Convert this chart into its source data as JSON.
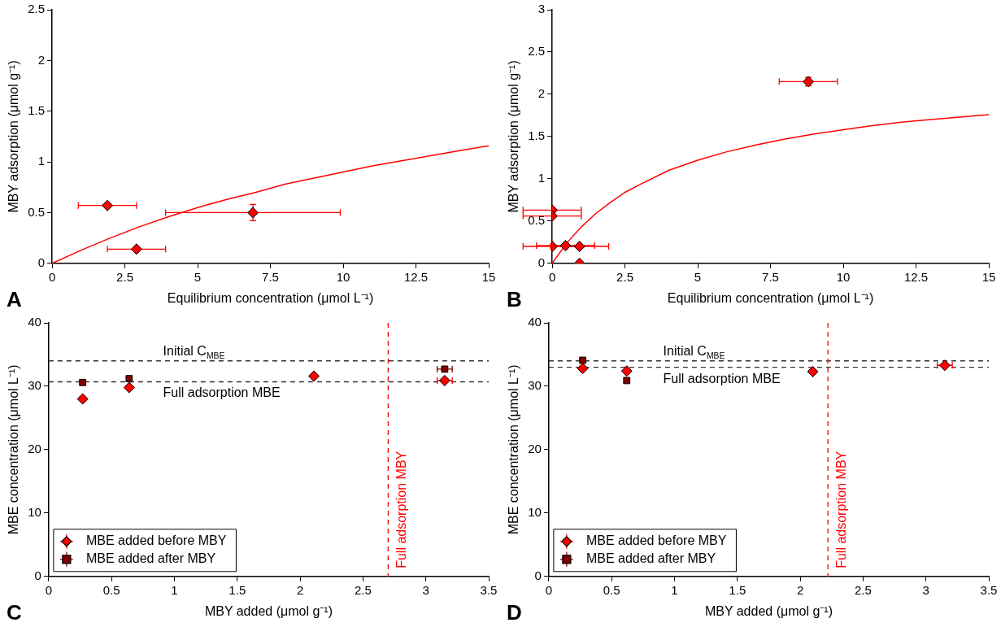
{
  "chart_data": [
    {
      "type": "scatter",
      "xlabel": "Equilibrium concentration (μmol L⁻¹)",
      "ylabel": "MBY adsorption (μmol g⁻¹)",
      "xlim": [
        0,
        15
      ],
      "xticks": [
        0,
        2.5,
        5,
        7.5,
        10,
        12.5,
        15
      ],
      "ylim": [
        0,
        2.5
      ],
      "yticks": [
        0,
        0.5,
        1,
        1.5,
        2,
        2.5
      ],
      "grid": false,
      "annotations": [
        "A"
      ],
      "series": [
        {
          "type": "line",
          "color": "#ff0000",
          "marker": "none",
          "x": [
            0,
            1,
            2,
            3,
            4,
            5,
            6,
            7,
            8,
            9,
            10,
            11,
            12,
            13,
            14,
            15
          ],
          "values": [
            0,
            0.13,
            0.25,
            0.36,
            0.46,
            0.55,
            0.63,
            0.7,
            0.78,
            0.84,
            0.9,
            0.96,
            1.01,
            1.06,
            1.11,
            1.16
          ]
        },
        {
          "color": "#ff0000",
          "marker": "diamond",
          "x": [
            1.9,
            2.9,
            6.9
          ],
          "values": [
            0.57,
            0.14,
            0.5
          ],
          "xerrors": [
            1,
            1,
            3
          ],
          "errors": [
            null,
            null,
            0.08
          ]
        }
      ]
    },
    {
      "type": "scatter",
      "xlabel": "Equilibrium concentration (μmol L⁻¹)",
      "ylabel": "MBY adsorption (μmol g⁻¹)",
      "xlim": [
        0,
        15
      ],
      "xticks": [
        0,
        2.5,
        5,
        7.5,
        10,
        12.5,
        15
      ],
      "ylim": [
        0,
        3
      ],
      "yticks": [
        0,
        0.5,
        1,
        1.5,
        2,
        2.5,
        3
      ],
      "grid": false,
      "annotations": [
        "B"
      ],
      "series": [
        {
          "type": "line",
          "color": "#ff0000",
          "marker": "none",
          "x": [
            0,
            0.5,
            1,
            1.5,
            2,
            2.5,
            3,
            4,
            5,
            6,
            7,
            8,
            9,
            10,
            11,
            12,
            13,
            14,
            15
          ],
          "values": [
            0,
            0.24,
            0.43,
            0.59,
            0.72,
            0.84,
            0.93,
            1.1,
            1.22,
            1.32,
            1.4,
            1.47,
            1.53,
            1.58,
            1.63,
            1.67,
            1.7,
            1.73,
            1.76
          ]
        },
        {
          "color": "#ff0000",
          "marker": "diamond",
          "x": [
            0,
            0,
            0,
            0.46,
            0.94,
            8.8,
            0.94
          ],
          "values": [
            0.63,
            0.56,
            0.2,
            0.21,
            0.2,
            2.15,
            0
          ],
          "xerrors": [
            1,
            1,
            1,
            1,
            1,
            1,
            null
          ],
          "errors": [
            null,
            null,
            null,
            null,
            null,
            0.05,
            null
          ]
        }
      ]
    },
    {
      "type": "scatter",
      "xlabel": "MBY added (μmol g⁻¹)",
      "ylabel": "MBE concentration (μmol L⁻¹)",
      "xlim": [
        0,
        3.5
      ],
      "xticks": [
        0,
        0.5,
        1,
        1.5,
        2,
        2.5,
        3,
        3.5
      ],
      "ylim": [
        0,
        40
      ],
      "yticks": [
        0,
        10,
        20,
        30,
        40
      ],
      "grid": false,
      "legend": "bottom left",
      "annotations": [
        "C"
      ],
      "ref_lines": [
        {
          "axis": "y",
          "value": 34,
          "label": "Initial C$_{MBE}$",
          "color": "#333333",
          "line_style": "dashed"
        },
        {
          "axis": "y",
          "value": 30.7,
          "label": "Full adsorption MBE",
          "color": "#333333",
          "line_style": "dashed"
        },
        {
          "axis": "x",
          "value": 2.7,
          "label": "Full adsorption MBY",
          "color": "#ff0000",
          "line_style": "dashed"
        }
      ],
      "series": [
        {
          "name": "MBE added before MBY",
          "color": "#ff0000",
          "marker": "diamond",
          "x": [
            0.27,
            0.64,
            2.11,
            3.15
          ],
          "values": [
            28,
            29.8,
            31.6,
            30.9
          ],
          "xerrors": [
            null,
            null,
            null,
            0.06
          ]
        },
        {
          "name": "MBE added after MBY",
          "color": "#800000",
          "marker": "square",
          "x": [
            0.27,
            0.64,
            2.11,
            3.15
          ],
          "values": [
            30.6,
            31.2,
            null,
            32.7
          ],
          "xerrors": [
            null,
            null,
            null,
            0.06
          ]
        }
      ]
    },
    {
      "type": "scatter",
      "xlabel": "MBY added (μmol g⁻¹)",
      "ylabel": "MBE concentration (μmol L⁻¹)",
      "xlim": [
        0,
        3.5
      ],
      "xticks": [
        0,
        0.5,
        1,
        1.5,
        2,
        2.5,
        3,
        3.5
      ],
      "ylim": [
        0,
        40
      ],
      "yticks": [
        0,
        10,
        20,
        30,
        40
      ],
      "grid": false,
      "legend": "bottom left",
      "annotations": [
        "D"
      ],
      "ref_lines": [
        {
          "axis": "y",
          "value": 34,
          "label": "Initial C$_{MBE}$",
          "color": "#333333",
          "line_style": "dashed"
        },
        {
          "axis": "y",
          "value": 33,
          "label": "Full adsorption MBE",
          "color": "#333333",
          "line_style": "dashed"
        },
        {
          "axis": "x",
          "value": 2.22,
          "label": "Full adsorption MBY",
          "color": "#ff0000",
          "line_style": "dashed"
        }
      ],
      "series": [
        {
          "name": "MBE added before MBY",
          "color": "#ff0000",
          "marker": "diamond",
          "x": [
            0.27,
            0.62,
            2.1,
            3.15
          ],
          "values": [
            32.8,
            32.4,
            32.3,
            33.3
          ],
          "xerrors": [
            null,
            null,
            null,
            0.06
          ]
        },
        {
          "name": "MBE added after MBY",
          "color": "#800000",
          "marker": "square",
          "x": [
            0.27,
            0.62
          ],
          "values": [
            34.1,
            30.9
          ]
        }
      ]
    }
  ]
}
